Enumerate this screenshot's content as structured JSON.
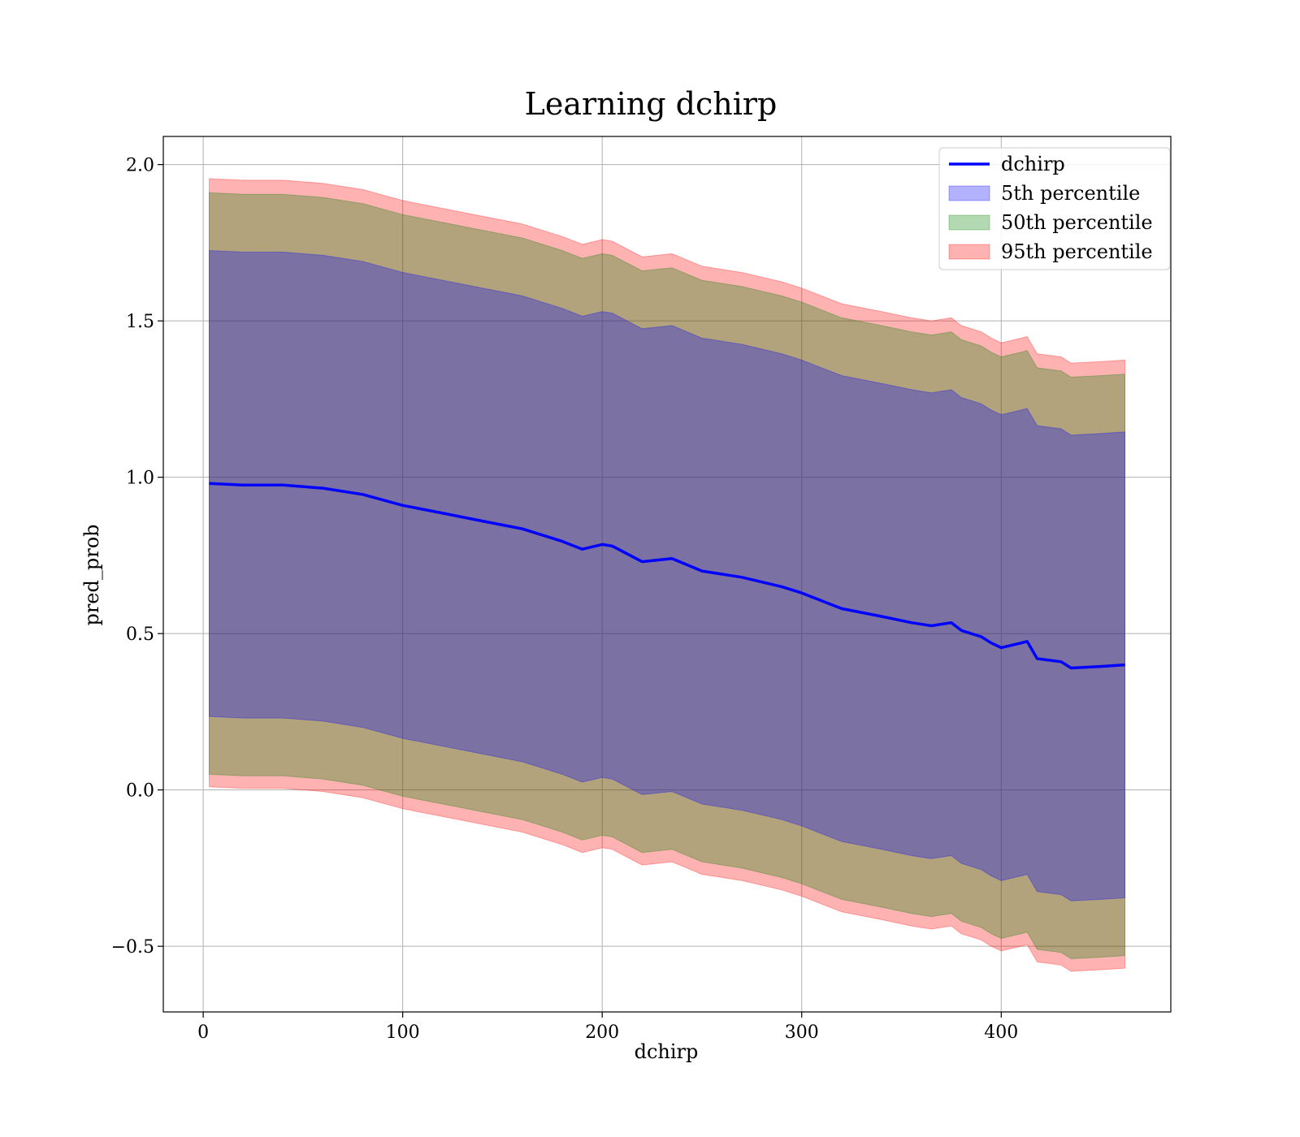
{
  "chart_data": {
    "type": "area",
    "title": "Learning dchirp",
    "xlabel": "dchirp",
    "ylabel": "pred_prob",
    "xlim": [
      -20,
      485
    ],
    "ylim": [
      -0.71,
      2.09
    ],
    "xticks": [
      0,
      100,
      200,
      300,
      400
    ],
    "xtick_labels": [
      "0",
      "100",
      "200",
      "300",
      "400"
    ],
    "yticks": [
      -0.5,
      0.0,
      0.5,
      1.0,
      1.5,
      2.0
    ],
    "ytick_labels": [
      "−0.5",
      "0.0",
      "0.5",
      "1.0",
      "1.5",
      "2.0"
    ],
    "grid": true,
    "legend_position": "top-right",
    "legend": [
      {
        "label": "dchirp",
        "kind": "line",
        "color": "#0000ff"
      },
      {
        "label": "5th percentile",
        "kind": "patch",
        "color": "#0000ff"
      },
      {
        "label": "50th percentile",
        "kind": "patch",
        "color": "#008000"
      },
      {
        "label": "95th percentile",
        "kind": "patch",
        "color": "#ff0000"
      }
    ],
    "x": [
      3,
      20,
      40,
      60,
      80,
      100,
      120,
      140,
      160,
      180,
      190,
      200,
      205,
      220,
      235,
      250,
      270,
      290,
      300,
      320,
      340,
      355,
      365,
      375,
      380,
      390,
      395,
      400,
      410,
      413,
      418,
      430,
      435,
      450,
      462
    ],
    "mean": [
      0.98,
      0.975,
      0.975,
      0.965,
      0.945,
      0.91,
      0.885,
      0.86,
      0.835,
      0.795,
      0.77,
      0.785,
      0.78,
      0.73,
      0.74,
      0.7,
      0.68,
      0.65,
      0.63,
      0.58,
      0.555,
      0.535,
      0.525,
      0.535,
      0.51,
      0.49,
      0.47,
      0.455,
      0.47,
      0.475,
      0.42,
      0.41,
      0.39,
      0.395,
      0.4
    ],
    "series": [
      {
        "name": "5th percentile",
        "color": "#0000ff",
        "lower_offset": -0.745,
        "upper_offset": 0.745
      },
      {
        "name": "50th percentile",
        "color": "#008000",
        "lower_offset": -0.93,
        "upper_offset": 0.93
      },
      {
        "name": "95th percentile",
        "color": "#ff0000",
        "lower_offset": -0.97,
        "upper_offset": 0.975
      }
    ],
    "line_series": {
      "name": "dchirp",
      "color": "#0000ff"
    }
  }
}
